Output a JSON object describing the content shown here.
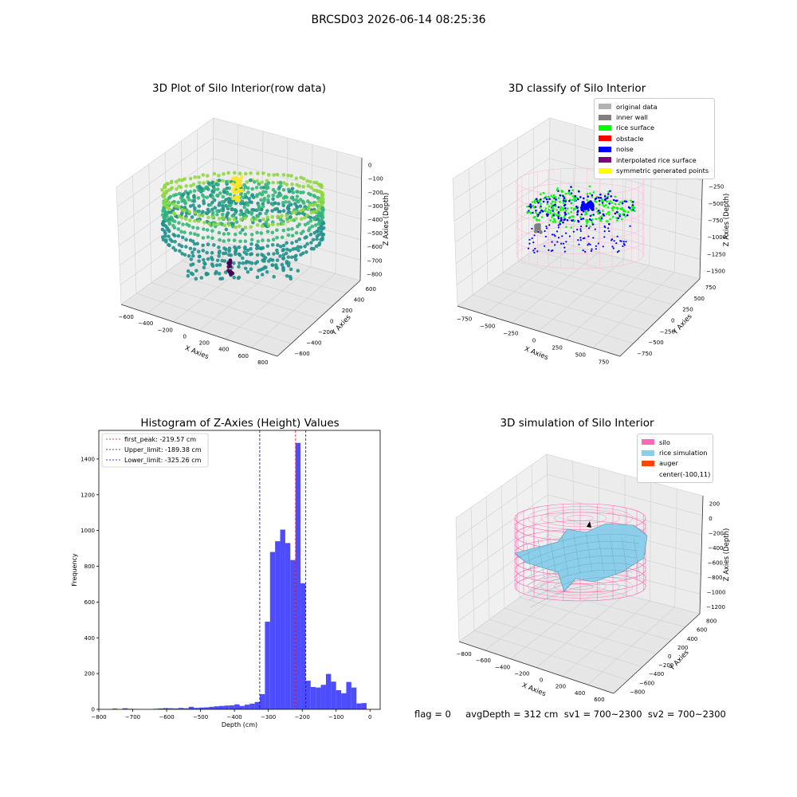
{
  "suptitle": "BRCSD03 2026-06-14 08:25:36",
  "status_line": "flag = 0     avgDepth = 312 cm  sv1 = 700~2300  sv2 = 700~2300",
  "chart_data": [
    {
      "type": "scatter",
      "subtype": "3d-scatter",
      "title": "3D Plot of Silo Interior(row data)",
      "xlabel": "X Axies",
      "ylabel": "Y Axies",
      "zlabel": "Z Axies (Depth)",
      "x_ticks": [
        "−600",
        "−400",
        "−200",
        "0",
        "200",
        "400",
        "600",
        "800"
      ],
      "y_ticks": [
        "−600",
        "−400",
        "−200",
        "0",
        "200",
        "400",
        "600"
      ],
      "z_ticks": [
        "0",
        "−100",
        "−200",
        "−300",
        "−400",
        "−500",
        "−600",
        "−700",
        "−800"
      ],
      "xlim": [
        -600,
        800
      ],
      "ylim": [
        -600,
        600
      ],
      "zlim": [
        -800,
        0
      ],
      "colormap": [
        "#440154",
        "#31688e",
        "#21918c",
        "#35b779",
        "#90d743",
        "#fde725"
      ]
    },
    {
      "type": "scatter",
      "subtype": "3d-classified",
      "title": "3D classify of Silo Interior",
      "xlabel": "X Axies",
      "ylabel": "Y Axies",
      "zlabel": "Z Axies (Depth)",
      "x_ticks": [
        "−750",
        "−500",
        "−250",
        "0",
        "250",
        "500",
        "750"
      ],
      "y_ticks": [
        "−750",
        "−500",
        "−250",
        "0",
        "250",
        "500",
        "750"
      ],
      "z_ticks": [
        "0",
        "−250",
        "−500",
        "−750",
        "−1000",
        "−1250",
        "−1500"
      ],
      "z_hidden_label": "250",
      "xlim": [
        -750,
        750
      ],
      "ylim": [
        -750,
        750
      ],
      "zlim": [
        -1500,
        250
      ],
      "legend_position": "top-right",
      "legend": [
        {
          "label": "original data",
          "color": "#b3b3b3"
        },
        {
          "label": "inner wall",
          "color": "#808080"
        },
        {
          "label": "rice surface",
          "color": "#00ff00"
        },
        {
          "label": "obstacle",
          "color": "#ff0000"
        },
        {
          "label": "noise",
          "color": "#0000ff"
        },
        {
          "label": "interpolated rice surface",
          "color": "#800080"
        },
        {
          "label": "symmetric generated points",
          "color": "#ffff00"
        }
      ],
      "colors": {
        "wall": "#ffb6d5"
      }
    },
    {
      "type": "bar",
      "subtype": "histogram",
      "title": "Histogram of Z-Axies (Height) Values",
      "xlabel": "Depth (cm)",
      "ylabel": "Frequency",
      "xlim": [
        -800,
        30
      ],
      "ylim": [
        0,
        1560
      ],
      "x_ticks": [
        -800,
        -700,
        -600,
        -500,
        -400,
        -300,
        -200,
        -100,
        0
      ],
      "y_ticks": [
        0,
        200,
        400,
        600,
        800,
        1000,
        1200,
        1400
      ],
      "bin_width": 15,
      "bar_color": "#4d4dff",
      "bins": [
        {
          "start": -760,
          "count": 4
        },
        {
          "start": -745,
          "count": 0
        },
        {
          "start": -730,
          "count": 6
        },
        {
          "start": -715,
          "count": 3
        },
        {
          "start": -700,
          "count": 2
        },
        {
          "start": -685,
          "count": 0
        },
        {
          "start": -670,
          "count": 0
        },
        {
          "start": -655,
          "count": 0
        },
        {
          "start": -640,
          "count": 3
        },
        {
          "start": -625,
          "count": 5
        },
        {
          "start": -610,
          "count": 7
        },
        {
          "start": -595,
          "count": 6
        },
        {
          "start": -580,
          "count": 5
        },
        {
          "start": -565,
          "count": 8
        },
        {
          "start": -550,
          "count": 6
        },
        {
          "start": -535,
          "count": 14
        },
        {
          "start": -520,
          "count": 8
        },
        {
          "start": -505,
          "count": 10
        },
        {
          "start": -490,
          "count": 11
        },
        {
          "start": -475,
          "count": 14
        },
        {
          "start": -460,
          "count": 17
        },
        {
          "start": -445,
          "count": 19
        },
        {
          "start": -430,
          "count": 21
        },
        {
          "start": -415,
          "count": 22
        },
        {
          "start": -400,
          "count": 28
        },
        {
          "start": -385,
          "count": 19
        },
        {
          "start": -370,
          "count": 26
        },
        {
          "start": -355,
          "count": 32
        },
        {
          "start": -340,
          "count": 41
        },
        {
          "start": -325,
          "count": 85
        },
        {
          "start": -310,
          "count": 490
        },
        {
          "start": -295,
          "count": 880
        },
        {
          "start": -280,
          "count": 940
        },
        {
          "start": -265,
          "count": 1005
        },
        {
          "start": -250,
          "count": 930
        },
        {
          "start": -235,
          "count": 835
        },
        {
          "start": -220,
          "count": 1490
        },
        {
          "start": -205,
          "count": 705
        },
        {
          "start": -190,
          "count": 160
        },
        {
          "start": -175,
          "count": 125
        },
        {
          "start": -160,
          "count": 122
        },
        {
          "start": -145,
          "count": 137
        },
        {
          "start": -130,
          "count": 198
        },
        {
          "start": -115,
          "count": 155
        },
        {
          "start": -100,
          "count": 107
        },
        {
          "start": -85,
          "count": 90
        },
        {
          "start": -70,
          "count": 153
        },
        {
          "start": -55,
          "count": 122
        },
        {
          "start": -40,
          "count": 33
        },
        {
          "start": -25,
          "count": 35
        }
      ],
      "vlines": [
        {
          "label": "first_peak: -219.57 cm",
          "x": -219.57,
          "color": "#ff0000"
        },
        {
          "label": "Upper_limit: -189.38 cm",
          "x": -189.38,
          "color": "#0000b3"
        },
        {
          "label": "Lower_limit: -325.26 cm",
          "x": -325.26,
          "color": "#0000b3"
        }
      ],
      "legend_position": "top-left"
    },
    {
      "type": "area",
      "subtype": "3d-surface",
      "title": "3D simulation of Silo Interior",
      "xlabel": "X Axies",
      "ylabel": "Y Axies",
      "zlabel": "Z Axies (Depth)",
      "x_ticks": [
        "−800",
        "−600",
        "−400",
        "−200",
        "0",
        "200",
        "400",
        "600"
      ],
      "y_ticks": [
        "−800",
        "−600",
        "−400",
        "−200",
        "0",
        "200",
        "400",
        "600",
        "800"
      ],
      "z_ticks": [
        "200",
        "0",
        "−200",
        "−400",
        "−600",
        "−800",
        "−1000",
        "−1200"
      ],
      "xlim": [
        -800,
        600
      ],
      "ylim": [
        -800,
        800
      ],
      "zlim": [
        -1200,
        200
      ],
      "legend_position": "top-right",
      "legend": [
        {
          "label": "silo",
          "color": "#ff69b4"
        },
        {
          "label": "rice simulation",
          "color": "#87ceeb"
        },
        {
          "label": "auger",
          "color": "#ff4500"
        },
        {
          "label": "center(-100,11)",
          "color": "none"
        }
      ]
    }
  ]
}
